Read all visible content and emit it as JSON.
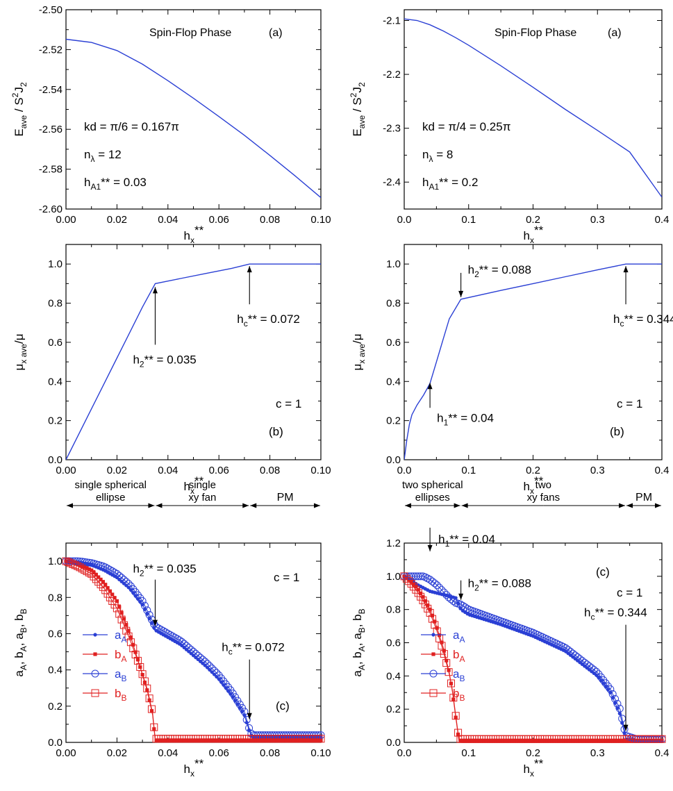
{
  "colors": {
    "blue": "#2a3fd4",
    "red": "#e02020",
    "black": "#000000"
  },
  "chart_data": [
    {
      "id": "p1",
      "type": "line",
      "xlim": [
        0,
        0.1
      ],
      "ylim": [
        -2.6,
        -2.5
      ],
      "xticks": [
        0,
        0.02,
        0.04,
        0.06,
        0.08,
        0.1
      ],
      "xtick_labels": [
        "0.00",
        "0.02",
        "0.04",
        "0.06",
        "0.08",
        "0.10"
      ],
      "yticks": [
        -2.6,
        -2.58,
        -2.56,
        -2.54,
        -2.52,
        -2.5
      ],
      "ytick_labels": [
        "-2.60",
        "-2.58",
        "-2.56",
        "-2.54",
        "-2.52",
        "-2.50"
      ],
      "ylabel_text": "E",
      "ylabel_sub": "ave",
      "ylabel_rest": " / S",
      "ylabel_sup": "2",
      "ylabel_end": "J",
      "ylabel_sub2": "2",
      "xlabel_text": "h",
      "xlabel_sub": "x",
      "xlabel_sup": "**",
      "series": [
        {
          "name": "E_ave",
          "x": [
            0,
            0.01,
            0.02,
            0.03,
            0.04,
            0.05,
            0.06,
            0.07,
            0.08,
            0.09,
            0.1
          ],
          "y": [
            -2.5148,
            -2.5164,
            -2.5205,
            -2.5273,
            -2.5356,
            -2.5444,
            -2.5536,
            -2.563,
            -2.5731,
            -2.5835,
            -2.5943
          ]
        }
      ],
      "annotations": {
        "title": "Spin-Flop Phase",
        "panel": "(a)",
        "kd": "kd = π/6 = 0.167π",
        "n_main": "n",
        "n_sub": "λ",
        "n_val": " = 12",
        "h_main": "h",
        "h_sub": "A1",
        "h_val": "** = 0.03"
      }
    },
    {
      "id": "p2",
      "type": "line",
      "xlim": [
        0,
        0.4
      ],
      "ylim": [
        -2.45,
        -2.08
      ],
      "xticks": [
        0,
        0.1,
        0.2,
        0.3,
        0.4
      ],
      "xtick_labels": [
        "0.0",
        "0.1",
        "0.2",
        "0.3",
        "0.4"
      ],
      "yticks": [
        -2.4,
        -2.3,
        -2.2,
        -2.1
      ],
      "ytick_labels": [
        "-2.4",
        "-2.3",
        "-2.2",
        "-2.1"
      ],
      "ylabel_text": "E",
      "ylabel_sub": "ave",
      "ylabel_rest": " / S",
      "ylabel_sup": "2",
      "ylabel_end": "J",
      "ylabel_sub2": "2",
      "xlabel_text": "h",
      "xlabel_sub": "x",
      "xlabel_sup": "**",
      "series": [
        {
          "name": "E_ave",
          "x": [
            0,
            0.02,
            0.04,
            0.06,
            0.08,
            0.1,
            0.15,
            0.2,
            0.25,
            0.3,
            0.35,
            0.4
          ],
          "y": [
            -2.097,
            -2.1,
            -2.108,
            -2.119,
            -2.132,
            -2.146,
            -2.184,
            -2.224,
            -2.265,
            -2.304,
            -2.344,
            -2.428
          ]
        }
      ],
      "annotations": {
        "title": "Spin-Flop Phase",
        "panel": "(a)",
        "kd": "kd = π/4 = 0.25π",
        "n_main": "n",
        "n_sub": "λ",
        "n_val": " = 8",
        "h_main": "h",
        "h_sub": "A1",
        "h_val": "** = 0.2"
      }
    },
    {
      "id": "p3",
      "type": "line",
      "xlim": [
        0,
        0.1
      ],
      "ylim": [
        0,
        1.1
      ],
      "xticks": [
        0,
        0.02,
        0.04,
        0.06,
        0.08,
        0.1
      ],
      "xtick_labels": [
        "0.00",
        "0.02",
        "0.04",
        "0.06",
        "0.08",
        "0.10"
      ],
      "yticks": [
        0,
        0.2,
        0.4,
        0.6,
        0.8,
        1.0
      ],
      "ytick_labels": [
        "0.0",
        "0.2",
        "0.4",
        "0.6",
        "0.8",
        "1.0"
      ],
      "ylabel_text": "μ",
      "ylabel_sub": "x ave",
      "ylabel_rest": "/μ",
      "xlabel_text": "h",
      "xlabel_sub": "x",
      "xlabel_sup": "**",
      "series": [
        {
          "name": "mu_x",
          "x": [
            0,
            0.005,
            0.01,
            0.015,
            0.02,
            0.025,
            0.03,
            0.035,
            0.045,
            0.055,
            0.065,
            0.072,
            0.08,
            0.1
          ],
          "y": [
            0,
            0.13,
            0.26,
            0.39,
            0.52,
            0.65,
            0.78,
            0.9,
            0.926,
            0.952,
            0.978,
            1.0,
            1.0,
            1.0
          ]
        }
      ],
      "annotations": {
        "panel": "(b)",
        "c": "c = 1",
        "hc_main": "h",
        "hc_sub": "c",
        "hc_val": "** = 0.072",
        "hc_x": 0.072,
        "hc_y": 1.0,
        "h2_main": "h",
        "h2_sub": "2",
        "h2_val": "** = 0.035",
        "h2_x": 0.035,
        "h2_y": 0.9
      }
    },
    {
      "id": "p4",
      "type": "line",
      "xlim": [
        0,
        0.4
      ],
      "ylim": [
        0,
        1.1
      ],
      "xticks": [
        0,
        0.1,
        0.2,
        0.3,
        0.4
      ],
      "xtick_labels": [
        "0.0",
        "0.1",
        "0.2",
        "0.3",
        "0.4"
      ],
      "yticks": [
        0,
        0.2,
        0.4,
        0.6,
        0.8,
        1.0
      ],
      "ytick_labels": [
        "0.0",
        "0.2",
        "0.4",
        "0.6",
        "0.8",
        "1.0"
      ],
      "ylabel_text": "μ",
      "ylabel_sub": "x ave",
      "ylabel_rest": "/μ",
      "xlabel_text": "h",
      "xlabel_sub": "x",
      "xlabel_sup": "**",
      "series": [
        {
          "name": "mu_x",
          "x": [
            0,
            0.004,
            0.008,
            0.012,
            0.02,
            0.03,
            0.04,
            0.05,
            0.06,
            0.07,
            0.088,
            0.15,
            0.2,
            0.25,
            0.3,
            0.344,
            0.36,
            0.4
          ],
          "y": [
            0,
            0.1,
            0.18,
            0.23,
            0.28,
            0.33,
            0.39,
            0.5,
            0.61,
            0.72,
            0.82,
            0.865,
            0.9,
            0.935,
            0.97,
            1.0,
            1.0,
            1.0
          ]
        }
      ],
      "annotations": {
        "panel": "(b)",
        "c": "c = 1",
        "hc_main": "h",
        "hc_sub": "c",
        "hc_val": "** = 0.344",
        "hc_x": 0.344,
        "hc_y": 1.0,
        "h2_main": "h",
        "h2_sub": "2",
        "h2_val": "** = 0.088",
        "h2_x": 0.088,
        "h2_y": 0.82,
        "h1_main": "h",
        "h1_sub": "1",
        "h1_val": "** = 0.04",
        "h1_x": 0.04,
        "h1_y": 0.4
      }
    },
    {
      "id": "p5",
      "type": "scatter",
      "xlim": [
        0,
        0.1
      ],
      "ylim": [
        0,
        1.1
      ],
      "xticks": [
        0,
        0.02,
        0.04,
        0.06,
        0.08,
        0.1
      ],
      "xtick_labels": [
        "0.00",
        "0.02",
        "0.04",
        "0.06",
        "0.08",
        "0.10"
      ],
      "yticks": [
        0,
        0.2,
        0.4,
        0.6,
        0.8,
        1.0
      ],
      "ytick_labels": [
        "0.0",
        "0.2",
        "0.4",
        "0.6",
        "0.8",
        "1.0"
      ],
      "ylabel_parts": [
        "a",
        "A",
        ", b",
        "A",
        ", a",
        "B",
        ", b",
        "B"
      ],
      "xlabel_text": "h",
      "xlabel_sub": "x",
      "xlabel_sup": "**",
      "phases": [
        {
          "label1": "single spherical",
          "label2": "ellipse",
          "x0": 0,
          "x1": 0.035
        },
        {
          "label1": "single",
          "label2": "xy fan",
          "x0": 0.035,
          "x1": 0.072
        },
        {
          "label1": "PM",
          "label2": "",
          "x0": 0.072,
          "x1": 0.1
        }
      ],
      "series": [
        {
          "name": "a_A",
          "legend_main": "a",
          "legend_sub": "A",
          "marker": "dot",
          "color": "#2a3fd4",
          "x": [
            0,
            0.005,
            0.01,
            0.015,
            0.02,
            0.025,
            0.03,
            0.035,
            0.04,
            0.045,
            0.05,
            0.055,
            0.06,
            0.065,
            0.07,
            0.072,
            0.073,
            0.08,
            0.09,
            0.1
          ],
          "y": [
            1.0,
            0.995,
            0.98,
            0.95,
            0.91,
            0.85,
            0.76,
            0.62,
            0.58,
            0.54,
            0.48,
            0.42,
            0.35,
            0.26,
            0.15,
            0.06,
            0.03,
            0.03,
            0.03,
            0.03
          ]
        },
        {
          "name": "b_A",
          "legend_main": "b",
          "legend_sub": "A",
          "marker": "square-filled",
          "color": "#e02020",
          "x": [
            0,
            0.005,
            0.01,
            0.015,
            0.02,
            0.025,
            0.029,
            0.032,
            0.034,
            0.035,
            0.04,
            0.06,
            0.08,
            0.1
          ],
          "y": [
            1.0,
            0.98,
            0.95,
            0.88,
            0.78,
            0.6,
            0.42,
            0.28,
            0.15,
            0.01,
            0.01,
            0.01,
            0.01,
            0.01
          ]
        },
        {
          "name": "a_B",
          "legend_main": "a",
          "legend_sub": "B",
          "marker": "circle-open",
          "color": "#2a3fd4",
          "x": [
            0,
            0.005,
            0.01,
            0.015,
            0.02,
            0.025,
            0.03,
            0.035,
            0.04,
            0.045,
            0.05,
            0.055,
            0.06,
            0.065,
            0.07,
            0.072,
            0.073,
            0.08,
            0.09,
            0.1
          ],
          "y": [
            1.0,
            1.0,
            0.99,
            0.97,
            0.93,
            0.87,
            0.78,
            0.64,
            0.6,
            0.56,
            0.5,
            0.44,
            0.37,
            0.28,
            0.17,
            0.07,
            0.04,
            0.04,
            0.04,
            0.04
          ]
        },
        {
          "name": "b_B",
          "legend_main": "b",
          "legend_sub": "B",
          "marker": "square-open",
          "color": "#e02020",
          "x": [
            0,
            0.005,
            0.01,
            0.015,
            0.02,
            0.025,
            0.029,
            0.032,
            0.034,
            0.035,
            0.04,
            0.06,
            0.08,
            0.1
          ],
          "y": [
            1.0,
            0.97,
            0.93,
            0.85,
            0.74,
            0.57,
            0.42,
            0.29,
            0.16,
            0.02,
            0.02,
            0.02,
            0.02,
            0.02
          ]
        }
      ],
      "annotations": {
        "panel": "(c)",
        "c": "c = 1",
        "h2_main": "h",
        "h2_sub": "2",
        "h2_val": "** = 0.035",
        "h2_x": 0.035,
        "h2_y": 0.63,
        "hc_main": "h",
        "hc_sub": "c",
        "hc_val": "** = 0.072",
        "hc_x": 0.072,
        "hc_y": 0.12
      }
    },
    {
      "id": "p6",
      "type": "scatter",
      "xlim": [
        0,
        0.4
      ],
      "ylim": [
        0,
        1.2
      ],
      "xticks": [
        0,
        0.1,
        0.2,
        0.3,
        0.4
      ],
      "xtick_labels": [
        "0.0",
        "0.1",
        "0.2",
        "0.3",
        "0.4"
      ],
      "yticks": [
        0,
        0.2,
        0.4,
        0.6,
        0.8,
        1.0,
        1.2
      ],
      "ytick_labels": [
        "0.0",
        "0.2",
        "0.4",
        "0.6",
        "0.8",
        "1.0",
        "1.2"
      ],
      "ylabel_parts": [
        "a",
        "A",
        ", b",
        "A",
        ", a",
        "B",
        ", b",
        "B"
      ],
      "xlabel_text": "h",
      "xlabel_sub": "x",
      "xlabel_sup": "**",
      "phases": [
        {
          "label1": "two spherical",
          "label2": "ellipses",
          "x0": 0,
          "x1": 0.088
        },
        {
          "label1": "two",
          "label2": "xy fans",
          "x0": 0.088,
          "x1": 0.344
        },
        {
          "label1": "PM",
          "label2": "",
          "x0": 0.344,
          "x1": 0.4
        }
      ],
      "series": [
        {
          "name": "a_A",
          "legend_main": "a",
          "legend_sub": "A",
          "marker": "dot",
          "color": "#2a3fd4",
          "x": [
            0,
            0.01,
            0.02,
            0.03,
            0.04,
            0.05,
            0.06,
            0.07,
            0.08,
            0.088,
            0.1,
            0.15,
            0.2,
            0.25,
            0.3,
            0.32,
            0.335,
            0.344,
            0.36,
            0.4
          ],
          "y": [
            1.0,
            0.98,
            0.95,
            0.93,
            0.91,
            0.9,
            0.89,
            0.88,
            0.87,
            0.8,
            0.77,
            0.71,
            0.64,
            0.55,
            0.4,
            0.3,
            0.17,
            0.02,
            0.01,
            0.01
          ]
        },
        {
          "name": "b_A",
          "legend_main": "b",
          "legend_sub": "A",
          "marker": "square-filled",
          "color": "#e02020",
          "x": [
            0,
            0.01,
            0.02,
            0.03,
            0.04,
            0.05,
            0.06,
            0.07,
            0.075,
            0.08,
            0.085,
            0.1,
            0.2,
            0.3,
            0.4
          ],
          "y": [
            1.0,
            0.97,
            0.93,
            0.87,
            0.8,
            0.7,
            0.58,
            0.42,
            0.3,
            0.15,
            0.01,
            0.01,
            0.01,
            0.01,
            0.01
          ]
        },
        {
          "name": "a_B",
          "legend_main": "a",
          "legend_sub": "B",
          "marker": "circle-open",
          "color": "#2a3fd4",
          "x": [
            0,
            0.01,
            0.02,
            0.03,
            0.04,
            0.05,
            0.06,
            0.07,
            0.08,
            0.088,
            0.1,
            0.15,
            0.2,
            0.25,
            0.3,
            0.32,
            0.335,
            0.344,
            0.36,
            0.4
          ],
          "y": [
            1.0,
            1.0,
            1.0,
            1.0,
            0.98,
            0.95,
            0.91,
            0.87,
            0.84,
            0.83,
            0.8,
            0.73,
            0.66,
            0.57,
            0.42,
            0.32,
            0.2,
            0.04,
            0.02,
            0.02
          ]
        },
        {
          "name": "b_B",
          "legend_main": "b",
          "legend_sub": "B",
          "marker": "square-open",
          "color": "#e02020",
          "x": [
            0,
            0.01,
            0.02,
            0.03,
            0.04,
            0.05,
            0.06,
            0.07,
            0.075,
            0.08,
            0.085,
            0.1,
            0.2,
            0.3,
            0.4
          ],
          "y": [
            1.0,
            0.96,
            0.91,
            0.85,
            0.78,
            0.68,
            0.56,
            0.41,
            0.31,
            0.16,
            0.02,
            0.02,
            0.02,
            0.02,
            0.02
          ]
        }
      ],
      "annotations": {
        "panel": "(c)",
        "c": "c = 1",
        "h1_main": "h",
        "h1_sub": "1",
        "h1_val": "** = 0.04",
        "h1_x": 0.04,
        "h1_y": 1.0,
        "h2_main": "h",
        "h2_sub": "2",
        "h2_val": "** = 0.088",
        "h2_x": 0.088,
        "h2_y": 0.85,
        "hc_main": "h",
        "hc_sub": "c",
        "hc_val": "** = 0.344",
        "hc_x": 0.344,
        "hc_y": 0.06
      }
    }
  ]
}
